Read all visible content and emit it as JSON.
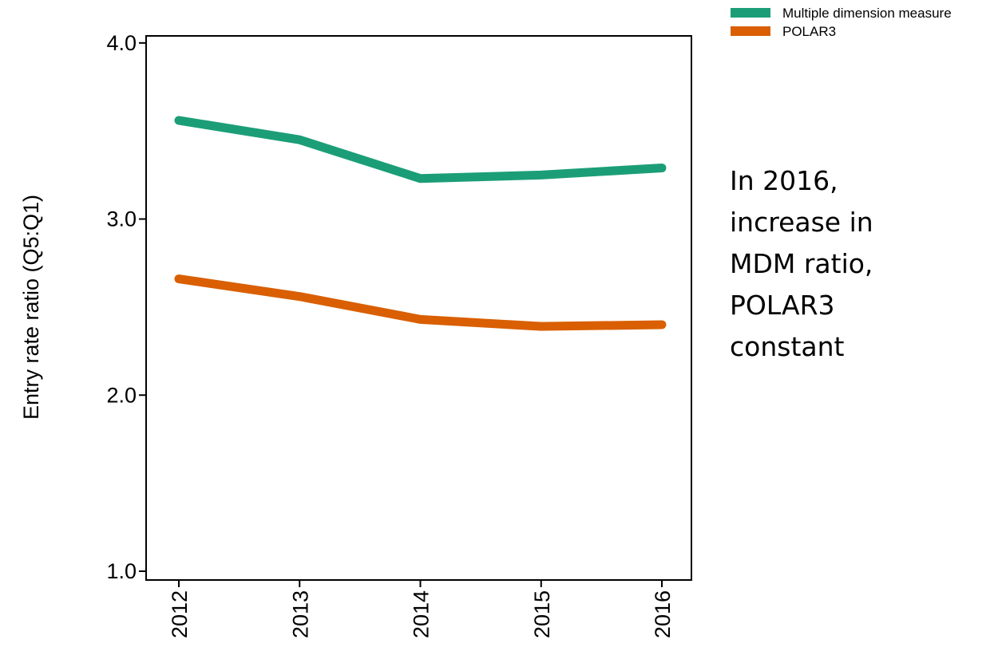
{
  "chart_data": {
    "type": "line",
    "y_label": "Entry rate ratio (Q5:Q1)",
    "categories": [
      "2012",
      "2013",
      "2014",
      "2015",
      "2016"
    ],
    "series": [
      {
        "name": "Multiple dimension measure",
        "color": "#1b9e77",
        "values": [
          3.56,
          3.45,
          3.23,
          3.25,
          3.29
        ]
      },
      {
        "name": "POLAR3",
        "color": "#d95f02",
        "values": [
          2.66,
          2.56,
          2.43,
          2.39,
          2.4
        ]
      }
    ],
    "ylim": [
      0.95,
      4.04
    ],
    "yticks": [
      {
        "value": 1,
        "label": "1.0"
      },
      {
        "value": 2,
        "label": "2.0"
      },
      {
        "value": 3,
        "label": "3.0"
      },
      {
        "value": 4,
        "label": "4.0"
      }
    ],
    "annotation": [
      "In 2016,",
      "increase in",
      "MDM ratio,",
      "POLAR3",
      "constant"
    ],
    "legend": "top-right"
  }
}
